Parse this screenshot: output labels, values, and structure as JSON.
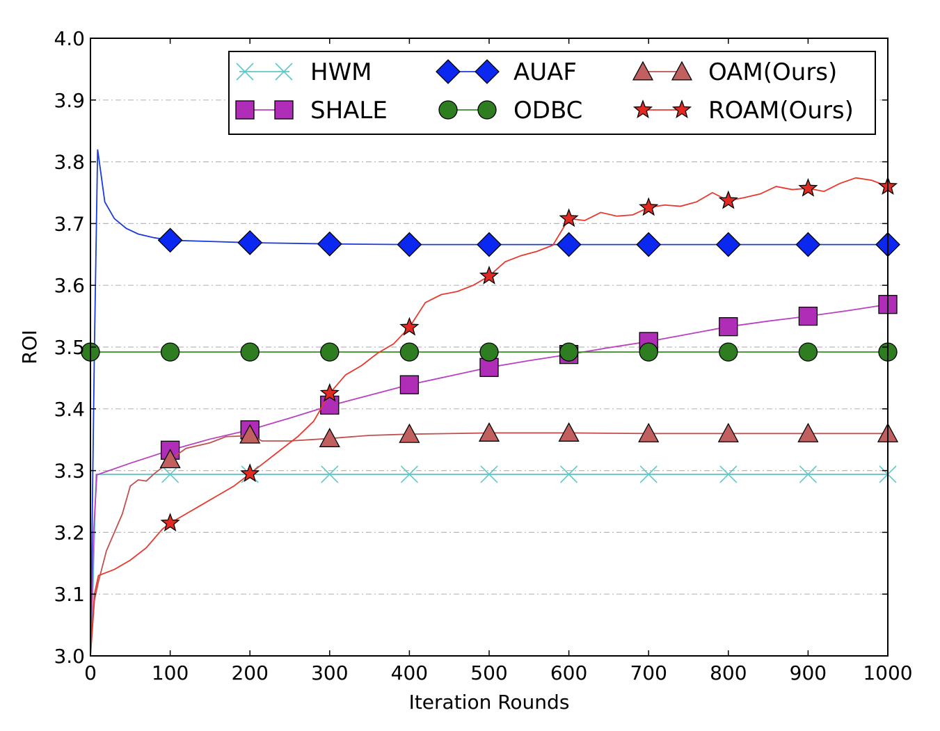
{
  "chart_data": {
    "type": "line",
    "title": "",
    "xlabel": "Iteration Rounds",
    "ylabel": "ROI",
    "xlim": [
      0,
      1000
    ],
    "ylim": [
      3.0,
      4.0
    ],
    "xticks": [
      0,
      100,
      200,
      300,
      400,
      500,
      600,
      700,
      800,
      900,
      1000
    ],
    "xtick_labels": [
      "0",
      "100",
      "200",
      "300",
      "400",
      "500",
      "600",
      "700",
      "800",
      "900",
      "1000"
    ],
    "yticks": [
      3.0,
      3.1,
      3.2,
      3.3,
      3.4,
      3.5,
      3.6,
      3.7,
      3.8,
      3.9,
      4.0
    ],
    "ytick_labels": [
      "3.0",
      "3.1",
      "3.2",
      "3.3",
      "3.4",
      "3.5",
      "3.6",
      "3.7",
      "3.8",
      "3.9",
      "4.0"
    ],
    "grid": "horizontal dash-dot",
    "legend_position": "top-right",
    "series": [
      {
        "name": "HWM",
        "color": "#5ec8c8",
        "marker": "x",
        "marker_fill": "#5ec8c8",
        "line": [
          [
            0,
            3.0
          ],
          [
            3,
            3.1
          ],
          [
            7,
            3.294
          ],
          [
            1000,
            3.294
          ]
        ],
        "markers": [
          [
            100,
            3.294
          ],
          [
            200,
            3.294
          ],
          [
            300,
            3.294
          ],
          [
            400,
            3.294
          ],
          [
            500,
            3.294
          ],
          [
            600,
            3.294
          ],
          [
            700,
            3.294
          ],
          [
            800,
            3.294
          ],
          [
            900,
            3.294
          ],
          [
            1000,
            3.294
          ]
        ]
      },
      {
        "name": "SHALE",
        "color": "#b940c0",
        "marker": "square",
        "marker_fill": "#b02db8",
        "line": [
          [
            0,
            3.0
          ],
          [
            4,
            3.2
          ],
          [
            8,
            3.293
          ],
          [
            50,
            3.312
          ],
          [
            100,
            3.333
          ],
          [
            150,
            3.351
          ],
          [
            200,
            3.366
          ],
          [
            250,
            3.385
          ],
          [
            300,
            3.405
          ],
          [
            350,
            3.422
          ],
          [
            400,
            3.439
          ],
          [
            450,
            3.453
          ],
          [
            500,
            3.467
          ],
          [
            550,
            3.478
          ],
          [
            600,
            3.488
          ],
          [
            650,
            3.499
          ],
          [
            700,
            3.509
          ],
          [
            750,
            3.521
          ],
          [
            800,
            3.533
          ],
          [
            850,
            3.542
          ],
          [
            900,
            3.55
          ],
          [
            950,
            3.559
          ],
          [
            1000,
            3.569
          ]
        ],
        "markers": [
          [
            100,
            3.333
          ],
          [
            200,
            3.366
          ],
          [
            300,
            3.406
          ],
          [
            400,
            3.439
          ],
          [
            500,
            3.467
          ],
          [
            600,
            3.488
          ],
          [
            700,
            3.509
          ],
          [
            800,
            3.533
          ],
          [
            900,
            3.55
          ],
          [
            1000,
            3.569
          ]
        ]
      },
      {
        "name": "AUAF",
        "color": "#1a3ae0",
        "marker": "diamond",
        "marker_fill": "#0a28f0",
        "line": [
          [
            0,
            3.0
          ],
          [
            5,
            3.5
          ],
          [
            9,
            3.82
          ],
          [
            18,
            3.735
          ],
          [
            30,
            3.708
          ],
          [
            45,
            3.692
          ],
          [
            60,
            3.683
          ],
          [
            80,
            3.677
          ],
          [
            100,
            3.673
          ],
          [
            150,
            3.671
          ],
          [
            200,
            3.669
          ],
          [
            300,
            3.667
          ],
          [
            400,
            3.666
          ],
          [
            1000,
            3.666
          ]
        ],
        "markers": [
          [
            100,
            3.673
          ],
          [
            200,
            3.669
          ],
          [
            300,
            3.667
          ],
          [
            400,
            3.666
          ],
          [
            500,
            3.666
          ],
          [
            600,
            3.666
          ],
          [
            700,
            3.666
          ],
          [
            800,
            3.666
          ],
          [
            900,
            3.666
          ],
          [
            1000,
            3.666
          ]
        ]
      },
      {
        "name": "ODBC",
        "color": "#3a8a2a",
        "marker": "circle",
        "marker_fill": "#2e7d20",
        "line": [
          [
            0,
            3.492
          ],
          [
            1000,
            3.492
          ]
        ],
        "markers": [
          [
            0,
            3.492
          ],
          [
            100,
            3.492
          ],
          [
            200,
            3.492
          ],
          [
            300,
            3.492
          ],
          [
            400,
            3.492
          ],
          [
            500,
            3.492
          ],
          [
            600,
            3.492
          ],
          [
            700,
            3.492
          ],
          [
            800,
            3.492
          ],
          [
            900,
            3.492
          ],
          [
            1000,
            3.492
          ]
        ]
      },
      {
        "name": "OAM(Ours)",
        "color": "#c0504d",
        "marker": "triangle",
        "marker_fill": "#c26060",
        "line": [
          [
            0,
            3.0
          ],
          [
            5,
            3.09
          ],
          [
            10,
            3.12
          ],
          [
            20,
            3.17
          ],
          [
            40,
            3.23
          ],
          [
            50,
            3.275
          ],
          [
            60,
            3.285
          ],
          [
            70,
            3.283
          ],
          [
            80,
            3.295
          ],
          [
            90,
            3.305
          ],
          [
            100,
            3.318
          ],
          [
            120,
            3.336
          ],
          [
            150,
            3.345
          ],
          [
            170,
            3.355
          ],
          [
            190,
            3.356
          ],
          [
            200,
            3.358
          ],
          [
            215,
            3.348
          ],
          [
            250,
            3.348
          ],
          [
            300,
            3.352
          ],
          [
            350,
            3.357
          ],
          [
            400,
            3.359
          ],
          [
            500,
            3.361
          ],
          [
            600,
            3.361
          ],
          [
            700,
            3.36
          ],
          [
            800,
            3.36
          ],
          [
            900,
            3.36
          ],
          [
            1000,
            3.36
          ]
        ],
        "markers": [
          [
            100,
            3.318
          ],
          [
            200,
            3.358
          ],
          [
            300,
            3.352
          ],
          [
            400,
            3.359
          ],
          [
            500,
            3.361
          ],
          [
            600,
            3.361
          ],
          [
            700,
            3.36
          ],
          [
            800,
            3.36
          ],
          [
            900,
            3.36
          ],
          [
            1000,
            3.36
          ]
        ]
      },
      {
        "name": "ROAM(Ours)",
        "color": "#e8382e",
        "marker": "star",
        "marker_fill": "#e02a22",
        "line": [
          [
            0,
            3.0
          ],
          [
            5,
            3.1
          ],
          [
            10,
            3.13
          ],
          [
            30,
            3.14
          ],
          [
            50,
            3.155
          ],
          [
            70,
            3.175
          ],
          [
            90,
            3.205
          ],
          [
            100,
            3.215
          ],
          [
            120,
            3.23
          ],
          [
            140,
            3.245
          ],
          [
            160,
            3.26
          ],
          [
            180,
            3.275
          ],
          [
            200,
            3.295
          ],
          [
            220,
            3.315
          ],
          [
            240,
            3.335
          ],
          [
            260,
            3.355
          ],
          [
            280,
            3.38
          ],
          [
            300,
            3.425
          ],
          [
            320,
            3.455
          ],
          [
            340,
            3.47
          ],
          [
            360,
            3.49
          ],
          [
            380,
            3.505
          ],
          [
            400,
            3.532
          ],
          [
            420,
            3.572
          ],
          [
            440,
            3.585
          ],
          [
            460,
            3.59
          ],
          [
            480,
            3.6
          ],
          [
            500,
            3.615
          ],
          [
            520,
            3.638
          ],
          [
            540,
            3.648
          ],
          [
            560,
            3.655
          ],
          [
            580,
            3.665
          ],
          [
            600,
            3.708
          ],
          [
            620,
            3.705
          ],
          [
            640,
            3.718
          ],
          [
            660,
            3.712
          ],
          [
            680,
            3.714
          ],
          [
            700,
            3.726
          ],
          [
            720,
            3.73
          ],
          [
            740,
            3.728
          ],
          [
            760,
            3.735
          ],
          [
            780,
            3.75
          ],
          [
            800,
            3.737
          ],
          [
            820,
            3.742
          ],
          [
            840,
            3.748
          ],
          [
            860,
            3.76
          ],
          [
            880,
            3.755
          ],
          [
            900,
            3.757
          ],
          [
            920,
            3.752
          ],
          [
            940,
            3.765
          ],
          [
            960,
            3.774
          ],
          [
            980,
            3.77
          ],
          [
            1000,
            3.76
          ]
        ],
        "markers": [
          [
            100,
            3.215
          ],
          [
            200,
            3.295
          ],
          [
            300,
            3.425
          ],
          [
            400,
            3.532
          ],
          [
            500,
            3.615
          ],
          [
            600,
            3.708
          ],
          [
            700,
            3.726
          ],
          [
            800,
            3.737
          ],
          [
            900,
            3.757
          ],
          [
            1000,
            3.76
          ]
        ]
      }
    ]
  }
}
